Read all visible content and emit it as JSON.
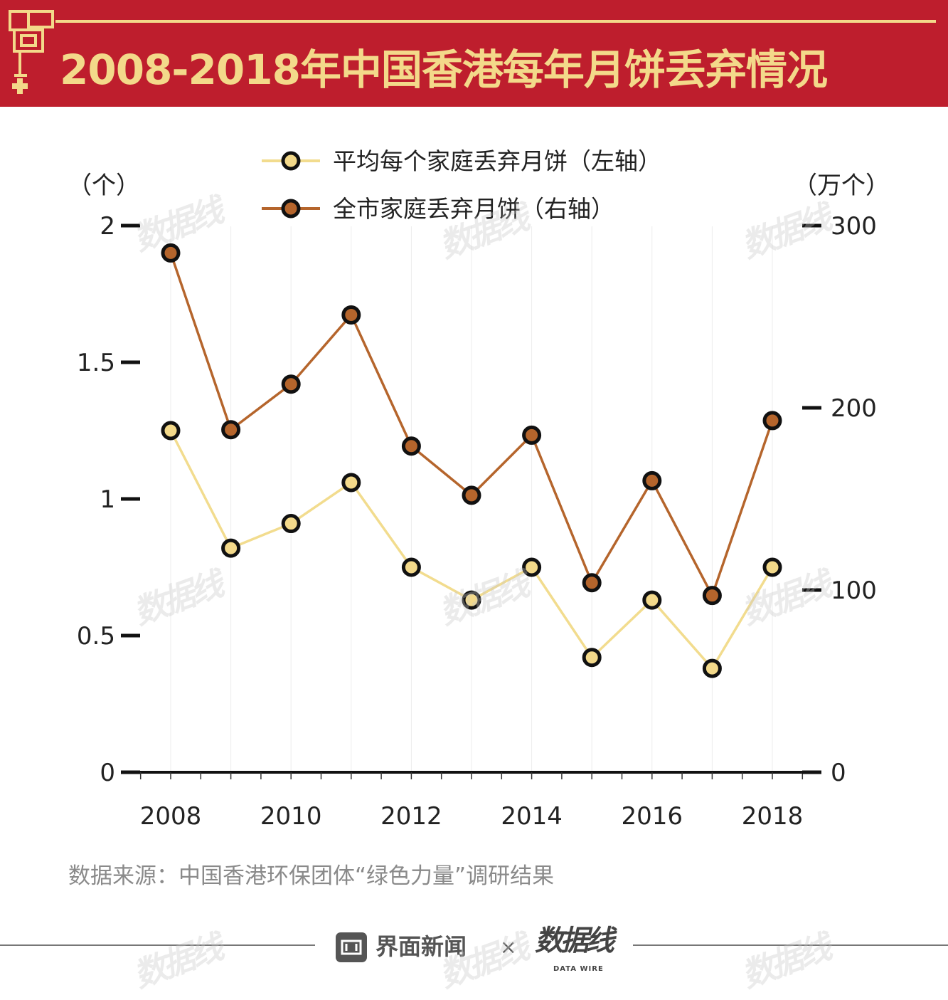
{
  "title": "2008-2018年中国香港每年月饼丢弃情况",
  "source": "数据来源：中国香港环保团体“绿色力量”调研结果",
  "footer": {
    "brand": "界面新闻",
    "separator": "×",
    "partner_logo": "数据线",
    "partner_sub": "DATA WIRE"
  },
  "watermark": "数据线",
  "colors": {
    "banner": "#be1e2d",
    "gold": "#f3d98a",
    "avg_line": "#f2dc8e",
    "total_line": "#b5652c",
    "total_marker": "#b5652c",
    "avg_marker": "#f3d98a"
  },
  "chart_data": {
    "type": "line",
    "x": [
      2008,
      2009,
      2010,
      2011,
      2012,
      2013,
      2014,
      2015,
      2016,
      2017,
      2018
    ],
    "x_tick_labels": [
      "2008",
      "2010",
      "2012",
      "2014",
      "2016",
      "2018"
    ],
    "left_axis": {
      "unit_label": "（个）",
      "ylim": [
        0,
        2
      ],
      "ticks": [
        "0",
        "0.5",
        "1",
        "1.5",
        "2"
      ]
    },
    "right_axis": {
      "unit_label": "（万个）",
      "ylim": [
        0,
        300
      ],
      "ticks": [
        "0",
        "100",
        "200",
        "300"
      ]
    },
    "series": [
      {
        "name": "平均每个家庭丢弃月饼（左轴）",
        "axis": "left",
        "values": [
          1.25,
          0.82,
          0.91,
          1.06,
          0.75,
          0.63,
          0.75,
          0.42,
          0.63,
          0.38,
          0.75
        ]
      },
      {
        "name": "全市家庭丢弃月饼（右轴）",
        "axis": "right",
        "values": [
          285,
          188,
          213,
          251,
          179,
          152,
          185,
          104,
          160,
          97,
          193
        ]
      }
    ],
    "legend_position": "top-center",
    "grid": "vertical"
  }
}
